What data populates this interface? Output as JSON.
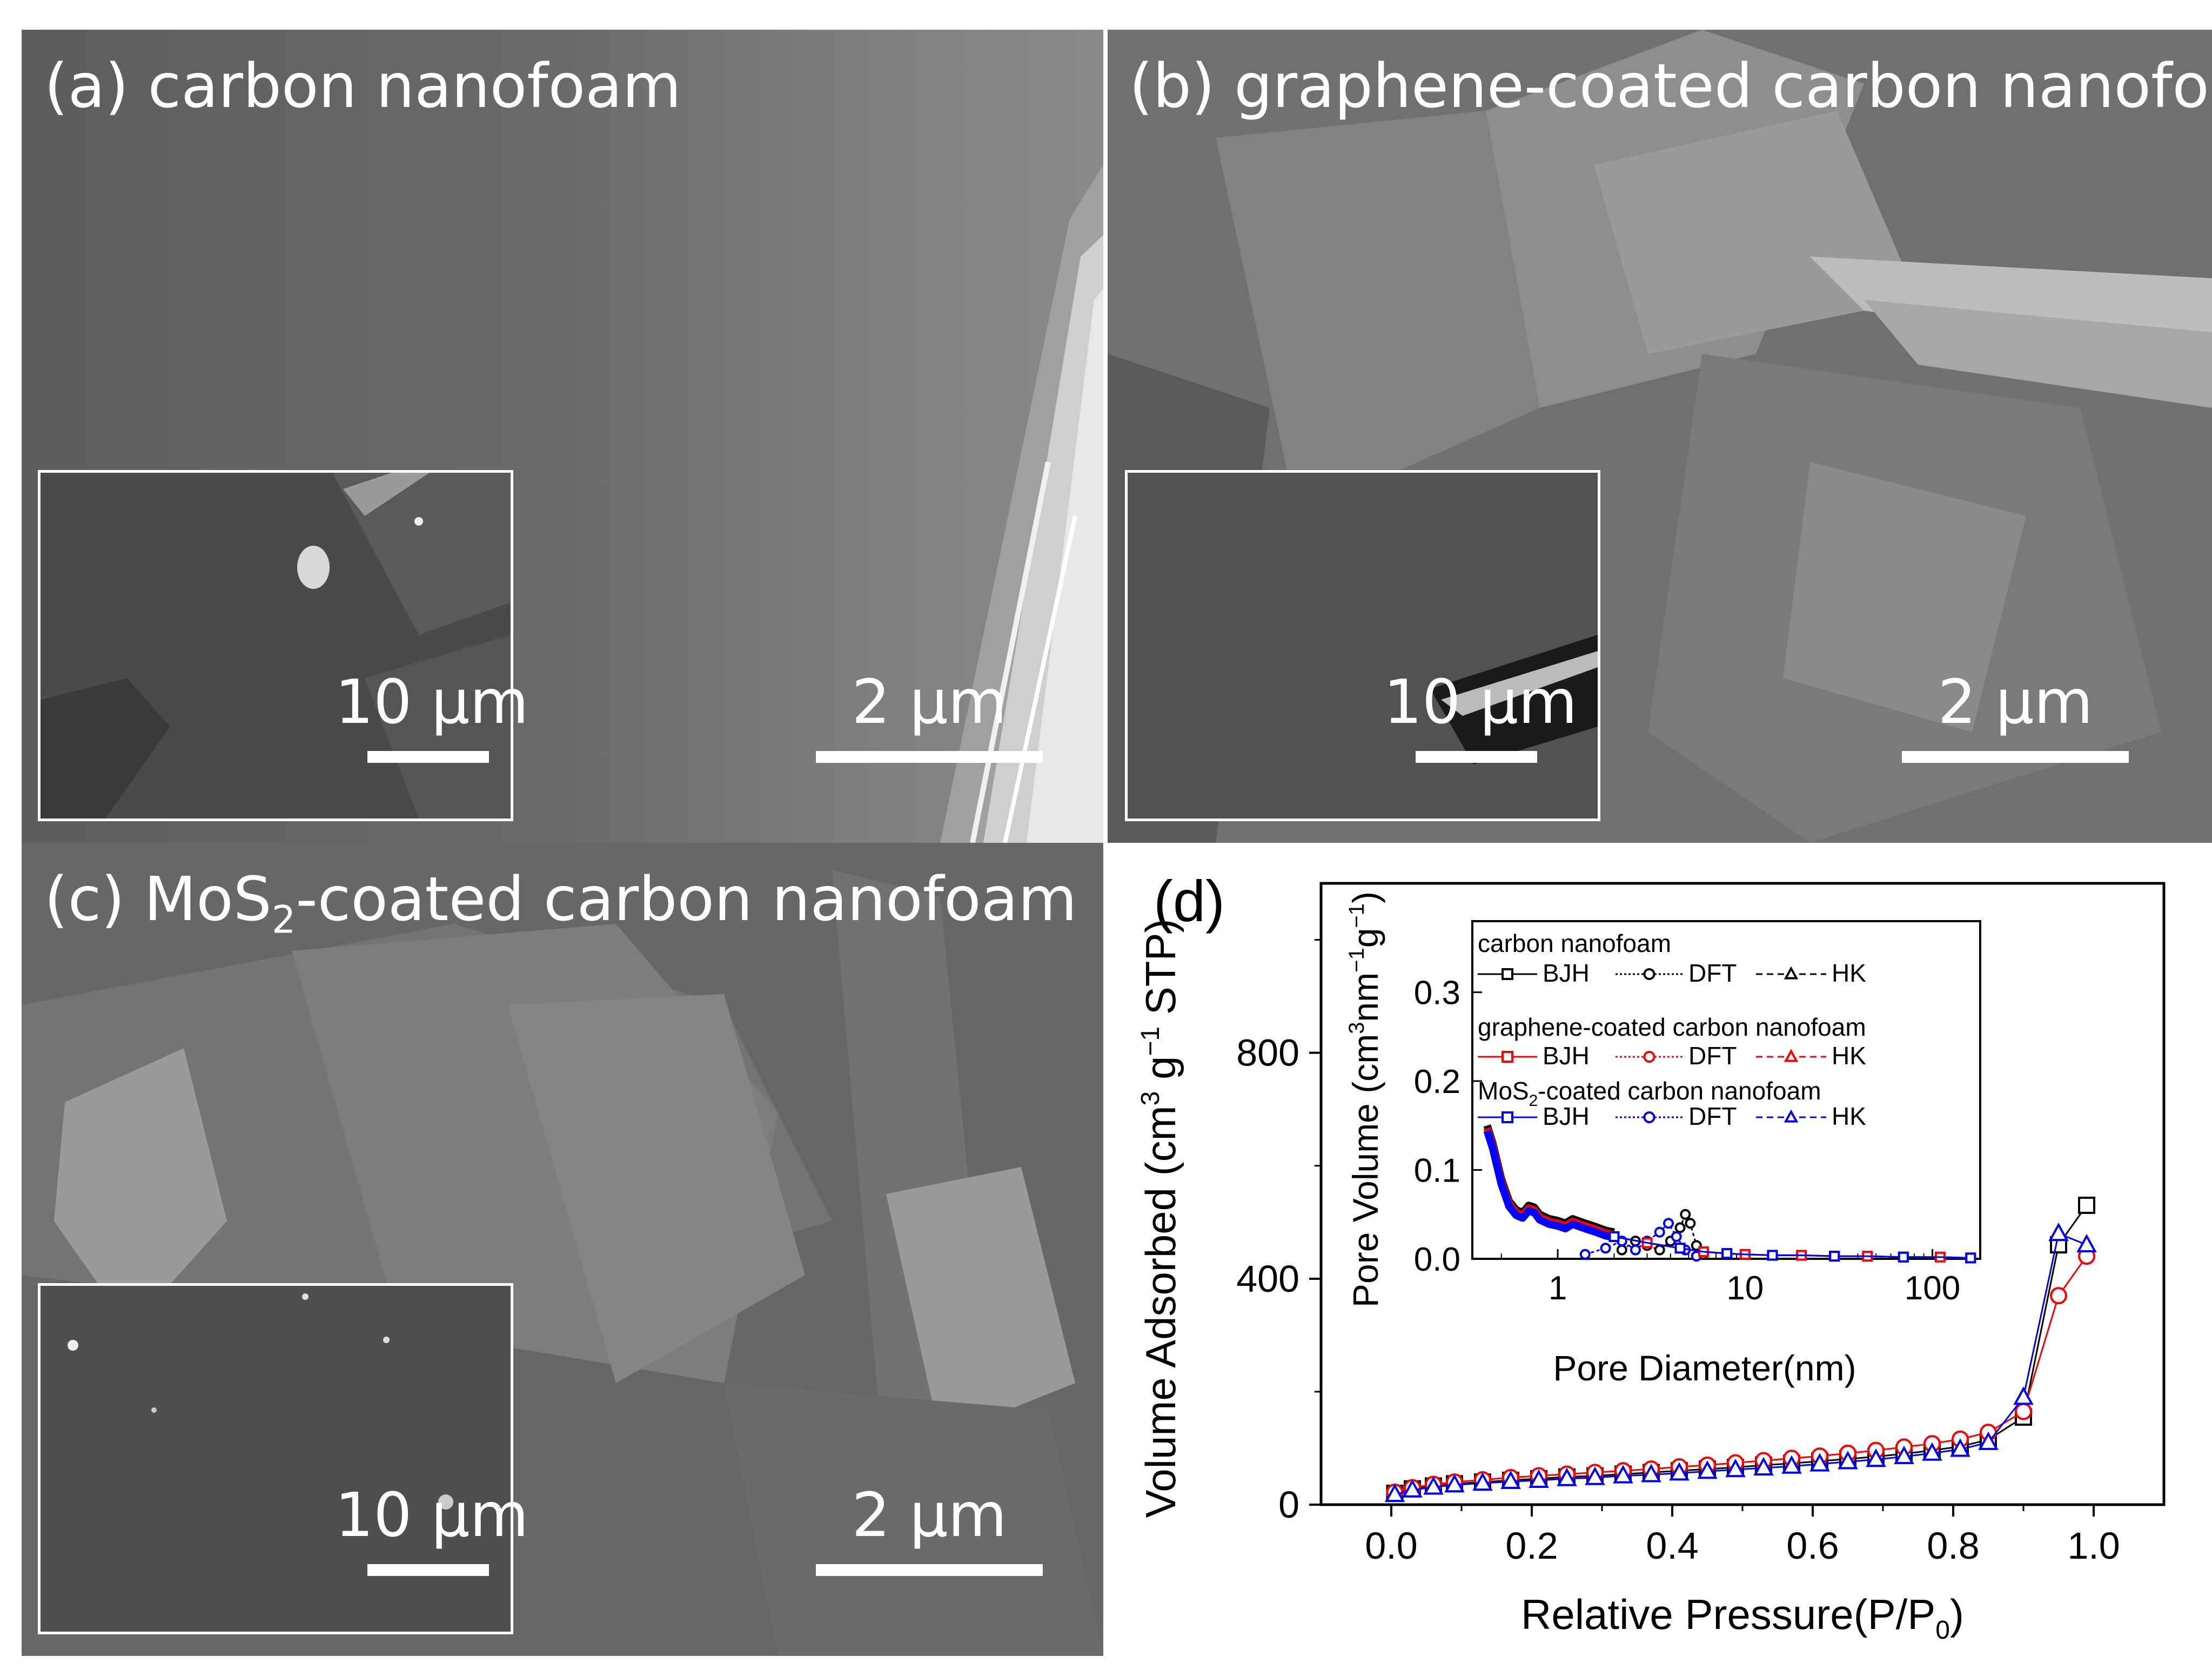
{
  "panels": {
    "a": {
      "label": "(a) carbon nanofoam",
      "scale_main": "2 µm",
      "scale_inset": "10 µm"
    },
    "b": {
      "label": "(b) graphene-coated carbon nanofoam",
      "scale_main": "2 µm",
      "scale_inset": "10 µm"
    },
    "c": {
      "label_pre": "(c) MoS",
      "label_sub": "2",
      "label_post": "-coated carbon nanofoam",
      "scale_main": "2 µm",
      "scale_inset": "10 µm"
    },
    "d": {
      "label": "(d)"
    }
  },
  "colors": {
    "carbon": "#000000",
    "graphene": "#ff0000",
    "mos2": "#0000ff"
  },
  "chart_data": [
    {
      "type": "scatter",
      "panel": "d",
      "xlabel_pre": "Relative Pressure(P/P",
      "xlabel_sub": "0",
      "xlabel_post": ")",
      "ylabel_pre": "Volume Adsorbed (cm",
      "ylabel_sup1": "3",
      "ylabel_mid": " g",
      "ylabel_sup2": "−1",
      "ylabel_post": " STP)",
      "xlim": [
        -0.1,
        1.1
      ],
      "ylim": [
        0,
        1100
      ],
      "x_ticks": [
        "0.0",
        "0.2",
        "0.4",
        "0.6",
        "0.8",
        "1.0"
      ],
      "y_ticks": [
        "0",
        "400",
        "800"
      ],
      "series": [
        {
          "color": "#000000",
          "marker": "square",
          "points": [
            [
              0.005,
              20
            ],
            [
              0.03,
              28
            ],
            [
              0.06,
              33
            ],
            [
              0.09,
              37
            ],
            [
              0.13,
              40
            ],
            [
              0.17,
              43
            ],
            [
              0.21,
              46
            ],
            [
              0.25,
              49
            ],
            [
              0.29,
              51
            ],
            [
              0.33,
              54
            ],
            [
              0.37,
              57
            ],
            [
              0.41,
              60
            ],
            [
              0.45,
              63
            ],
            [
              0.49,
              66
            ],
            [
              0.53,
              70
            ],
            [
              0.57,
              73
            ],
            [
              0.61,
              77
            ],
            [
              0.65,
              81
            ],
            [
              0.69,
              85
            ],
            [
              0.73,
              90
            ],
            [
              0.77,
              96
            ],
            [
              0.81,
              103
            ],
            [
              0.85,
              115
            ],
            [
              0.9,
              155
            ],
            [
              0.95,
              460
            ],
            [
              0.99,
              530
            ]
          ]
        },
        {
          "color": "#ff0000",
          "marker": "circle",
          "points": [
            [
              0.005,
              22
            ],
            [
              0.03,
              30
            ],
            [
              0.06,
              36
            ],
            [
              0.09,
              40
            ],
            [
              0.13,
              44
            ],
            [
              0.17,
              48
            ],
            [
              0.21,
              51
            ],
            [
              0.25,
              54
            ],
            [
              0.29,
              57
            ],
            [
              0.33,
              60
            ],
            [
              0.37,
              63
            ],
            [
              0.41,
              67
            ],
            [
              0.45,
              70
            ],
            [
              0.49,
              74
            ],
            [
              0.53,
              78
            ],
            [
              0.57,
              82
            ],
            [
              0.61,
              86
            ],
            [
              0.65,
              91
            ],
            [
              0.69,
              96
            ],
            [
              0.73,
              102
            ],
            [
              0.77,
              108
            ],
            [
              0.81,
              116
            ],
            [
              0.85,
              128
            ],
            [
              0.9,
              165
            ],
            [
              0.95,
              370
            ],
            [
              0.99,
              440
            ]
          ]
        },
        {
          "color": "#0000ff",
          "marker": "triangle",
          "points": [
            [
              0.005,
              18
            ],
            [
              0.03,
              26
            ],
            [
              0.06,
              31
            ],
            [
              0.09,
              35
            ],
            [
              0.13,
              38
            ],
            [
              0.17,
              41
            ],
            [
              0.21,
              43
            ],
            [
              0.25,
              46
            ],
            [
              0.29,
              48
            ],
            [
              0.33,
              51
            ],
            [
              0.37,
              53
            ],
            [
              0.41,
              56
            ],
            [
              0.45,
              59
            ],
            [
              0.49,
              62
            ],
            [
              0.53,
              65
            ],
            [
              0.57,
              68
            ],
            [
              0.61,
              72
            ],
            [
              0.65,
              76
            ],
            [
              0.69,
              80
            ],
            [
              0.73,
              85
            ],
            [
              0.77,
              91
            ],
            [
              0.81,
              98
            ],
            [
              0.85,
              110
            ],
            [
              0.9,
              190
            ],
            [
              0.95,
              480
            ],
            [
              0.99,
              460
            ]
          ]
        }
      ]
    },
    {
      "type": "line",
      "panel": "d-inset",
      "xlabel": "Pore Diameter(nm)",
      "ylabel_pre": "Pore Volume (cm",
      "ylabel_sup1": "3",
      "ylabel_mid": "nm",
      "ylabel_sup2": "−1",
      "ylabel_mid2": "g",
      "ylabel_sup3": "−1",
      "ylabel_post": ")",
      "x_scale": "log",
      "xlim": [
        0.35,
        180
      ],
      "ylim": [
        0,
        0.38
      ],
      "x_ticks": [
        "1",
        "10",
        "100"
      ],
      "y_ticks": [
        "0.0",
        "0.1",
        "0.2",
        "0.3"
      ],
      "legend": {
        "groups": [
          {
            "title": "carbon nanofoam",
            "color": "#000000",
            "items": [
              "BJH",
              "DFT",
              "HK"
            ]
          },
          {
            "title": "graphene-coated carbon nanofoam",
            "color": "#ff0000",
            "items": [
              "BJH",
              "DFT",
              "HK"
            ]
          },
          {
            "title_pre": "MoS",
            "title_sub": "2",
            "title_post": "-coated carbon nanofoam",
            "color": "#0000ff",
            "items": [
              "BJH",
              "DFT",
              "HK"
            ]
          }
        ]
      },
      "bjh_points": [
        [
          2.0,
          0.025
        ],
        [
          3.0,
          0.018
        ],
        [
          4.5,
          0.012
        ],
        [
          6,
          0.008
        ],
        [
          8,
          0.006
        ],
        [
          10,
          0.005
        ],
        [
          14,
          0.004
        ],
        [
          20,
          0.004
        ],
        [
          30,
          0.003
        ],
        [
          45,
          0.003
        ],
        [
          70,
          0.002
        ],
        [
          110,
          0.002
        ],
        [
          160,
          0.001
        ]
      ],
      "dense_hk_points": [
        [
          0.42,
          0.15
        ],
        [
          0.45,
          0.13
        ],
        [
          0.5,
          0.09
        ],
        [
          0.55,
          0.065
        ],
        [
          0.6,
          0.055
        ],
        [
          0.65,
          0.052
        ],
        [
          0.7,
          0.06
        ],
        [
          0.75,
          0.058
        ],
        [
          0.8,
          0.05
        ],
        [
          0.9,
          0.045
        ],
        [
          1.0,
          0.043
        ],
        [
          1.1,
          0.04
        ],
        [
          1.2,
          0.045
        ],
        [
          1.4,
          0.04
        ],
        [
          1.6,
          0.036
        ],
        [
          1.8,
          0.032
        ],
        [
          2.0,
          0.03
        ]
      ],
      "dft_carbon": [
        [
          2.2,
          0.01
        ],
        [
          2.6,
          0.02
        ],
        [
          3.0,
          0.015
        ],
        [
          3.5,
          0.01
        ],
        [
          4.0,
          0.02
        ],
        [
          4.5,
          0.035
        ],
        [
          4.8,
          0.05
        ],
        [
          5.1,
          0.04
        ],
        [
          5.5,
          0.015
        ],
        [
          6,
          0.005
        ]
      ],
      "dft_mos2": [
        [
          1.4,
          0.005
        ],
        [
          1.8,
          0.012
        ],
        [
          2.2,
          0.02
        ],
        [
          2.6,
          0.01
        ],
        [
          3.0,
          0.02
        ],
        [
          3.5,
          0.03
        ],
        [
          3.9,
          0.04
        ],
        [
          4.3,
          0.025
        ],
        [
          4.8,
          0.01
        ],
        [
          5.5,
          0.003
        ]
      ]
    }
  ]
}
